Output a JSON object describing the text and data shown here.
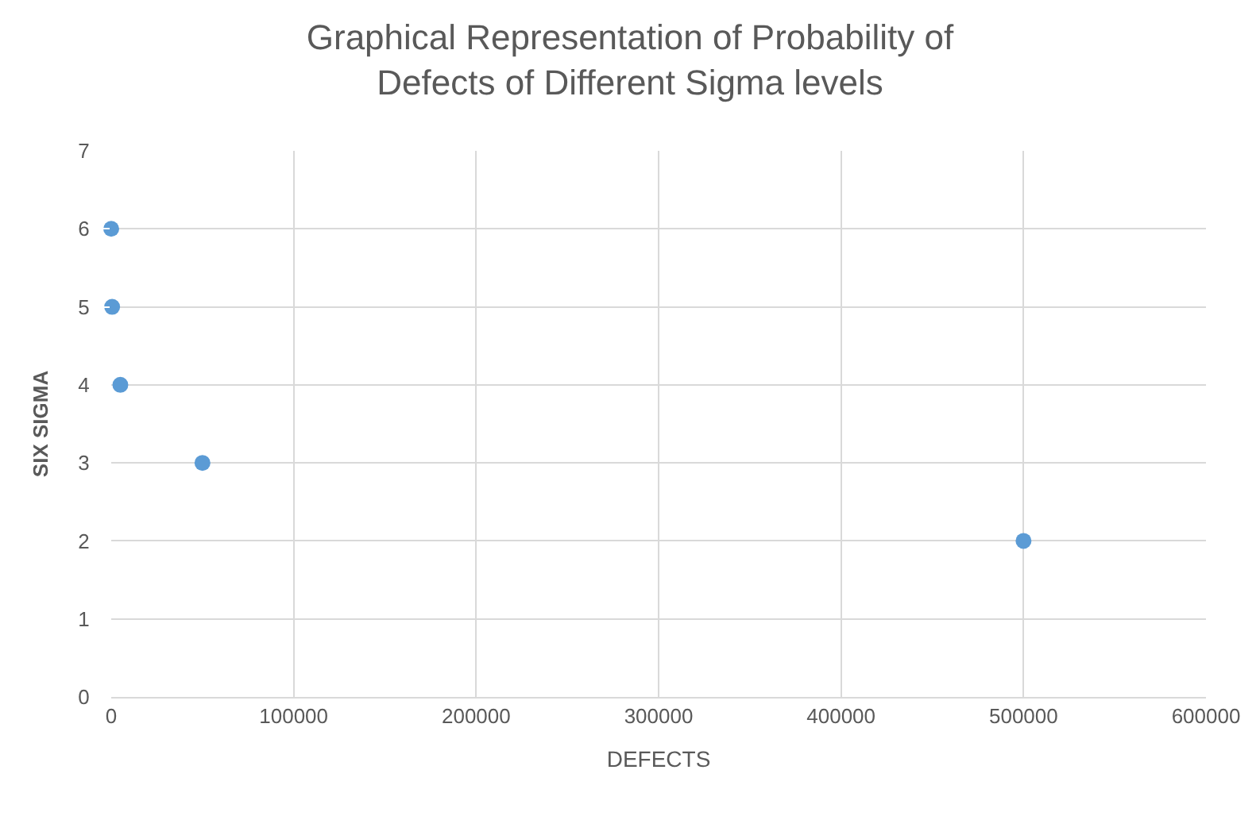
{
  "chart_data": {
    "type": "scatter",
    "title": "Graphical Representation of Probability of Defects of Different Sigma levels",
    "xlabel": "DEFECTS",
    "ylabel": "SIX SIGMA",
    "x": [
      0,
      500,
      5000,
      50000,
      500000
    ],
    "series": [
      {
        "color": "#5b9bd5",
        "values": [
          6,
          5,
          4,
          3,
          2
        ]
      }
    ],
    "xlim": [
      0,
      600000
    ],
    "xticks": [
      0,
      100000,
      200000,
      300000,
      400000,
      500000,
      600000
    ],
    "ylim": [
      0,
      7
    ],
    "yticks": [
      0,
      1,
      2,
      3,
      4,
      5,
      6,
      7
    ],
    "grid": true,
    "marker": "circle",
    "legend": false
  }
}
